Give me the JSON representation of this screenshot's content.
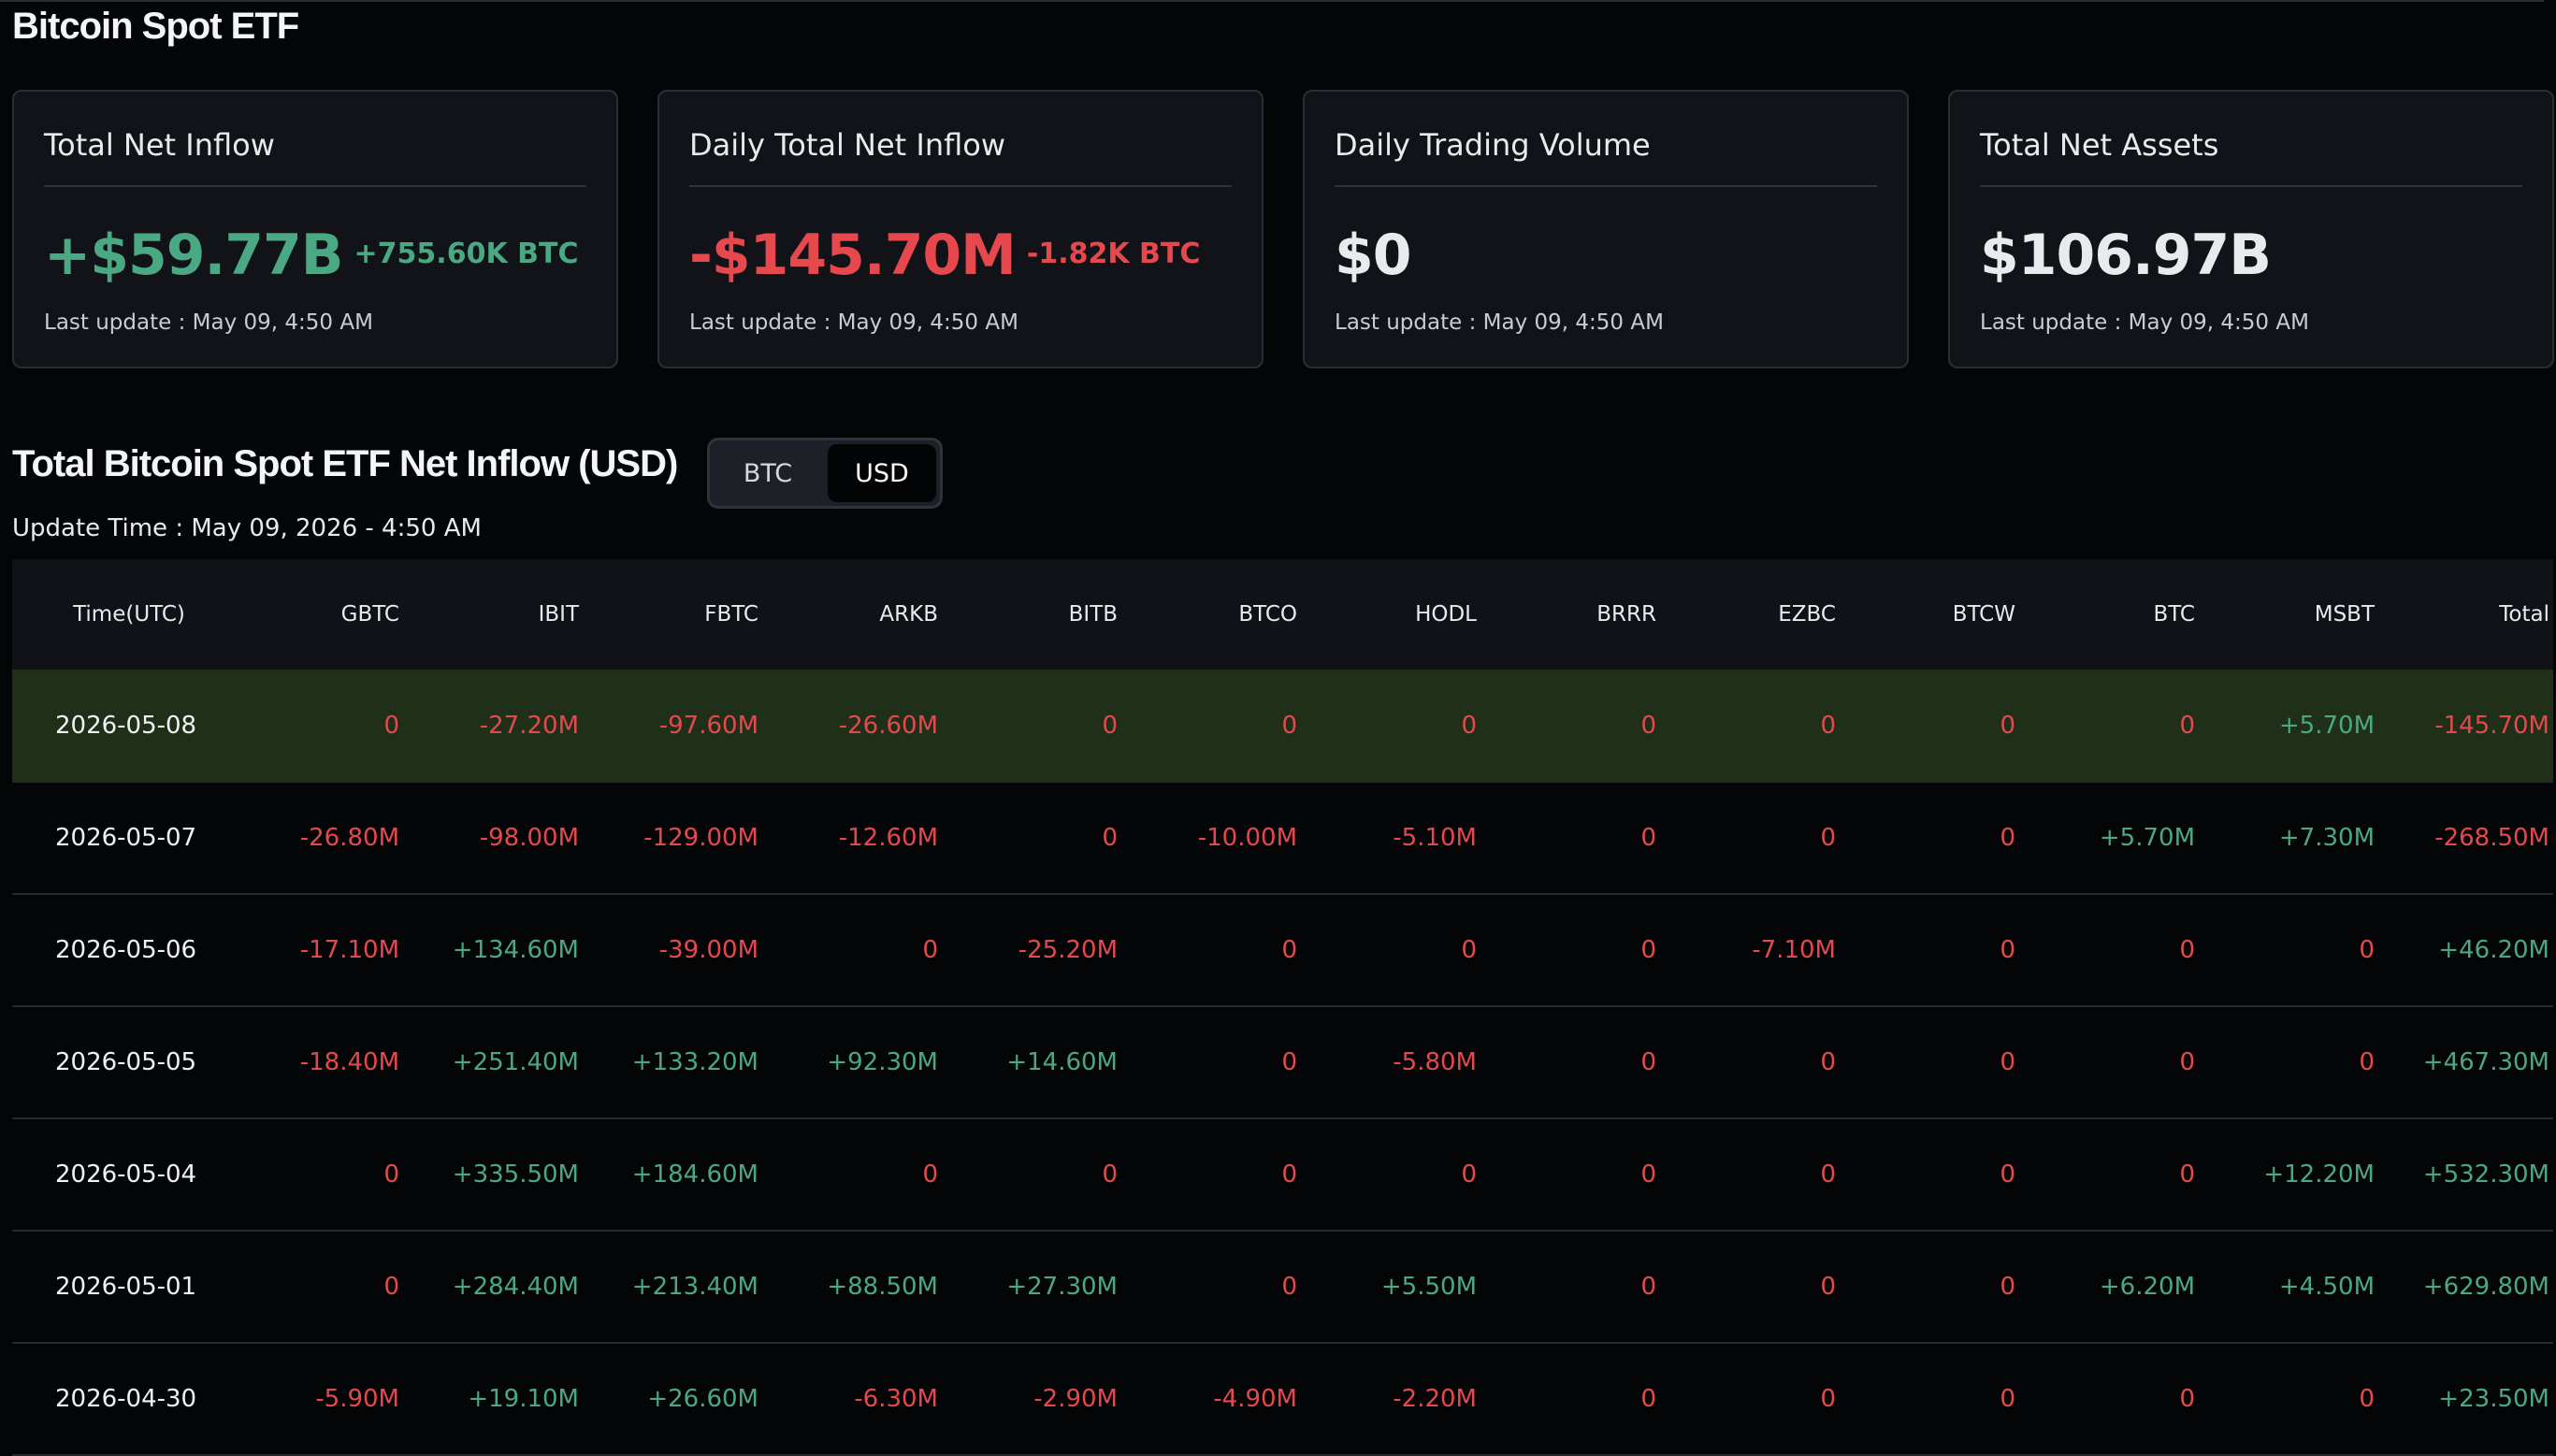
{
  "page": {
    "title": "Bitcoin Spot ETF"
  },
  "cards": [
    {
      "title": "Total Net Inflow",
      "value": "+$59.77B",
      "sub": "+755.60K BTC",
      "tone": "pos",
      "update": "Last update : May 09, 4:50 AM"
    },
    {
      "title": "Daily Total Net Inflow",
      "value": "-$145.70M",
      "sub": "-1.82K BTC",
      "tone": "neg",
      "update": "Last update : May 09, 4:50 AM"
    },
    {
      "title": "Daily Trading Volume",
      "value": "$0",
      "sub": "",
      "tone": "neutral",
      "update": "Last update : May 09, 4:50 AM"
    },
    {
      "title": "Total Net Assets",
      "value": "$106.97B",
      "sub": "",
      "tone": "neutral",
      "update": "Last update : May 09, 4:50 AM"
    }
  ],
  "section": {
    "title": "Total Bitcoin Spot ETF Net Inflow (USD)",
    "update_time": "Update Time : May 09, 2026 - 4:50 AM",
    "toggle": {
      "btc_label": "BTC",
      "usd_label": "USD",
      "selected": "USD"
    }
  },
  "colors": {
    "positive": "#4aa882",
    "negative": "#e5484d",
    "highlight_row": "#1f2f18",
    "background": "#040507"
  },
  "table": {
    "columns": [
      "Time(UTC)",
      "GBTC",
      "IBIT",
      "FBTC",
      "ARKB",
      "BITB",
      "BTCO",
      "HODL",
      "BRRR",
      "EZBC",
      "BTCW",
      "BTC",
      "MSBT",
      "Total"
    ],
    "rows": [
      {
        "date": "2026-05-08",
        "highlight": true,
        "cells": [
          "0",
          "-27.20M",
          "-97.60M",
          "-26.60M",
          "0",
          "0",
          "0",
          "0",
          "0",
          "0",
          "0",
          "+5.70M",
          "-145.70M"
        ]
      },
      {
        "date": "2026-05-07",
        "highlight": false,
        "cells": [
          "-26.80M",
          "-98.00M",
          "-129.00M",
          "-12.60M",
          "0",
          "-10.00M",
          "-5.10M",
          "0",
          "0",
          "0",
          "+5.70M",
          "+7.30M",
          "-268.50M"
        ]
      },
      {
        "date": "2026-05-06",
        "highlight": false,
        "cells": [
          "-17.10M",
          "+134.60M",
          "-39.00M",
          "0",
          "-25.20M",
          "0",
          "0",
          "0",
          "-7.10M",
          "0",
          "0",
          "0",
          "+46.20M"
        ]
      },
      {
        "date": "2026-05-05",
        "highlight": false,
        "cells": [
          "-18.40M",
          "+251.40M",
          "+133.20M",
          "+92.30M",
          "+14.60M",
          "0",
          "-5.80M",
          "0",
          "0",
          "0",
          "0",
          "0",
          "+467.30M"
        ]
      },
      {
        "date": "2026-05-04",
        "highlight": false,
        "cells": [
          "0",
          "+335.50M",
          "+184.60M",
          "0",
          "0",
          "0",
          "0",
          "0",
          "0",
          "0",
          "0",
          "+12.20M",
          "+532.30M"
        ]
      },
      {
        "date": "2026-05-01",
        "highlight": false,
        "cells": [
          "0",
          "+284.40M",
          "+213.40M",
          "+88.50M",
          "+27.30M",
          "0",
          "+5.50M",
          "0",
          "0",
          "0",
          "+6.20M",
          "+4.50M",
          "+629.80M"
        ]
      },
      {
        "date": "2026-04-30",
        "highlight": false,
        "cells": [
          "-5.90M",
          "+19.10M",
          "+26.60M",
          "-6.30M",
          "-2.90M",
          "-4.90M",
          "-2.20M",
          "0",
          "0",
          "0",
          "0",
          "0",
          "+23.50M"
        ]
      }
    ]
  }
}
